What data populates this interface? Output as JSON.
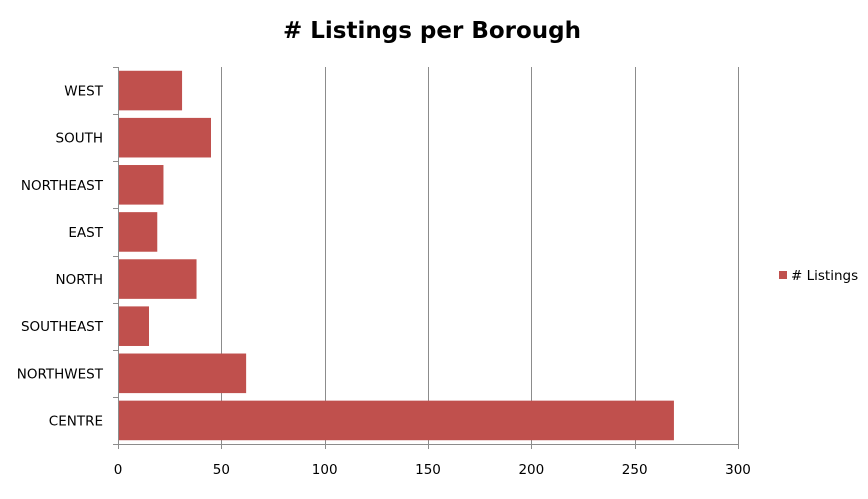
{
  "chart_data": {
    "type": "bar",
    "orientation": "horizontal",
    "title": "# Listings per Borough",
    "xlabel": "",
    "ylabel": "",
    "categories": [
      "WEST",
      "SOUTH",
      "NORTHEAST",
      "EAST",
      "NORTH",
      "SOUTHEAST",
      "NORTHWEST",
      "CENTRE"
    ],
    "series": [
      {
        "name": "# Listings",
        "values": [
          31,
          45,
          22,
          19,
          38,
          15,
          62,
          269
        ],
        "color": "#c0504d"
      }
    ],
    "xlim": [
      0,
      300
    ],
    "ticks": [
      0,
      50,
      100,
      150,
      200,
      250,
      300
    ],
    "grid": "vertical",
    "legend": "right"
  }
}
